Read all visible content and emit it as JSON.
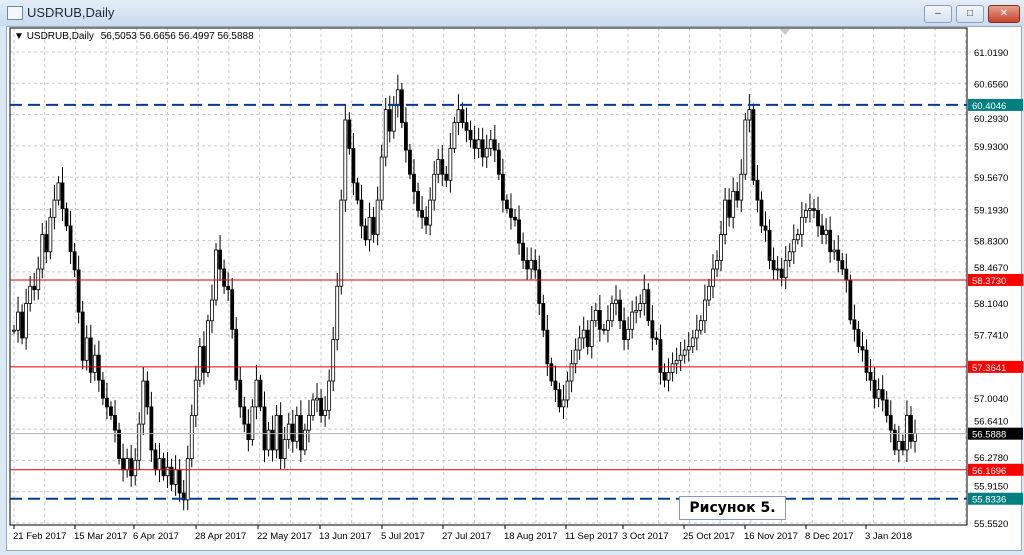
{
  "window": {
    "title": "USDRUB,Daily",
    "minimize": "–",
    "maximize": "□",
    "close": "✕"
  },
  "legend": {
    "symbol": "USDRUB,Daily",
    "ohlc": "56,5053 56.6656 56.4997 56.5888"
  },
  "annotation": "Рисунок 5.",
  "colors": {
    "support_resistance_dashed": "#003c96",
    "horizontal_levels": "#e00000",
    "level_label_teal": "#008080",
    "level_label_red": "#ff0000",
    "current_price_label": "#000000",
    "bull_candle": "#ffffff",
    "bear_candle": "#000000"
  },
  "chart_data": {
    "type": "candlestick",
    "symbol": "USDRUB",
    "timeframe": "Daily",
    "grid": true,
    "ylim": [
      55.552,
      61.019
    ],
    "y_ticks": [
      "61.0190",
      "60.6560",
      "60.2930",
      "59.9300",
      "59.5670",
      "59.1930",
      "58.8300",
      "58.4670",
      "58.1040",
      "57.7410",
      "57.0040",
      "56.6410",
      "56.2780",
      "55.9150",
      "55.5520"
    ],
    "x_ticks": [
      "21 Feb 2017",
      "15 Mar 2017",
      "6 Apr 2017",
      "28 Apr 2017",
      "22 May 2017",
      "13 Jun 2017",
      "5 Jul 2017",
      "27 Jul 2017",
      "18 Aug 2017",
      "11 Sep 2017",
      "3 Oct 2017",
      "25 Oct 2017",
      "16 Nov 2017",
      "8 Dec 2017",
      "3 Jan 2018"
    ],
    "levels": [
      {
        "value": "60.4046",
        "style": "dashed",
        "color": "#003c96",
        "label_bg": "#008080"
      },
      {
        "value": "58.3730",
        "style": "solid",
        "color": "#e00000",
        "label_bg": "#ff0000"
      },
      {
        "value": "57.3641",
        "style": "solid",
        "color": "#e00000",
        "label_bg": "#ff0000"
      },
      {
        "value": "56.1696",
        "style": "solid",
        "color": "#e00000",
        "label_bg": "#ff0000"
      },
      {
        "value": "55.8336",
        "style": "dashed",
        "color": "#003c96",
        "label_bg": "#008080"
      }
    ],
    "current_price": "56.5888",
    "closes": [
      57.79,
      58.0,
      57.7,
      58.1,
      58.3,
      58.26,
      58.5,
      58.9,
      58.7,
      59.1,
      59.3,
      59.5,
      59.2,
      59.0,
      58.7,
      58.49,
      58.0,
      57.44,
      57.7,
      57.3,
      57.5,
      57.21,
      57.0,
      56.9,
      56.8,
      56.63,
      56.3,
      56.17,
      56.3,
      56.1,
      56.28,
      56.7,
      57.2,
      56.9,
      56.4,
      56.17,
      56.3,
      56.1,
      56.2,
      56.0,
      56.17,
      55.9,
      55.82,
      56.3,
      56.8,
      57.21,
      57.6,
      57.3,
      57.9,
      58.14,
      58.72,
      58.5,
      58.3,
      58.26,
      57.8,
      57.21,
      56.9,
      56.7,
      56.52,
      56.9,
      57.21,
      56.9,
      56.4,
      56.63,
      56.4,
      56.8,
      56.3,
      56.52,
      56.7,
      56.5,
      56.8,
      56.4,
      56.63,
      56.8,
      56.98,
      57.0,
      56.8,
      56.86,
      57.2,
      57.68,
      58.3,
      59.3,
      60.23,
      59.9,
      59.5,
      59.3,
      59.0,
      58.84,
      59.1,
      58.9,
      59.3,
      59.8,
      60.35,
      60.1,
      60.4,
      60.58,
      60.2,
      59.88,
      59.6,
      59.4,
      59.18,
      59.1,
      59.01,
      59.3,
      59.6,
      59.77,
      59.6,
      59.53,
      59.9,
      60.2,
      60.35,
      60.2,
      60.11,
      60.0,
      59.9,
      60.0,
      59.8,
      59.9,
      60.0,
      59.88,
      59.6,
      59.3,
      59.2,
      59.1,
      59.07,
      58.8,
      58.6,
      58.5,
      58.6,
      58.49,
      58.1,
      57.79,
      57.4,
      57.2,
      57.1,
      56.9,
      56.98,
      57.2,
      57.4,
      57.56,
      57.7,
      57.79,
      57.6,
      57.9,
      58.02,
      57.8,
      57.79,
      57.9,
      58.1,
      58.14,
      57.9,
      57.68,
      57.8,
      58.0,
      58.02,
      58.1,
      58.26,
      57.9,
      57.7,
      57.68,
      57.3,
      57.21,
      57.3,
      57.4,
      57.44,
      57.5,
      57.56,
      57.6,
      57.7,
      57.79,
      57.9,
      58.14,
      58.3,
      58.5,
      58.6,
      58.9,
      59.3,
      59.1,
      59.4,
      59.3,
      59.6,
      60.23,
      60.35,
      59.53,
      59.3,
      59.0,
      58.95,
      58.6,
      58.49,
      58.5,
      58.4,
      58.6,
      58.7,
      58.84,
      58.9,
      59.1,
      59.18,
      59.2,
      59.18,
      59.0,
      58.9,
      58.95,
      58.7,
      58.72,
      58.6,
      58.5,
      58.37,
      57.91,
      57.8,
      57.6,
      57.56,
      57.3,
      57.21,
      57.0,
      57.1,
      56.98,
      56.8,
      56.63,
      56.4,
      56.5,
      56.4,
      56.8,
      56.5,
      56.59
    ]
  }
}
